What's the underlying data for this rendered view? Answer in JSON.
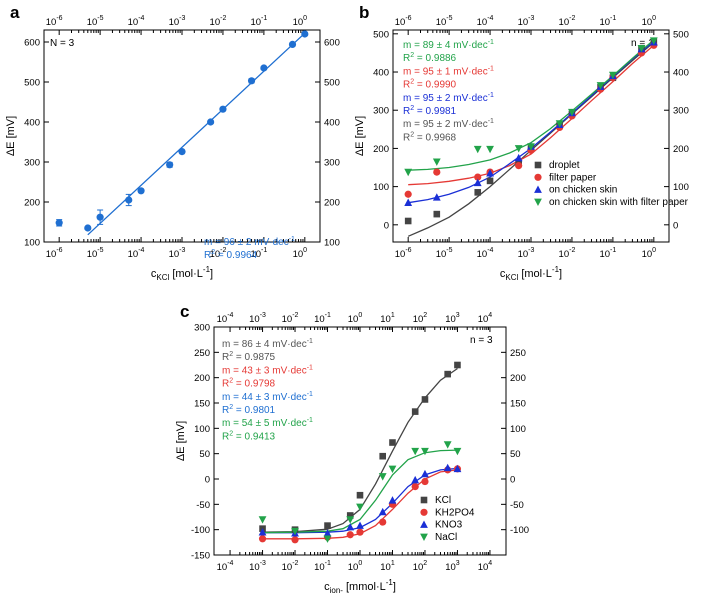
{
  "chart_data": [
    {
      "id": "a",
      "type": "scatter",
      "panel_label": "a",
      "xscale": "log",
      "xlim": [
        1e-06,
        1
      ],
      "ylim": [
        100,
        630
      ],
      "yticks": [
        100,
        200,
        300,
        400,
        500,
        600
      ],
      "ytick_labels": [
        "100",
        "200",
        "300",
        "400",
        "500",
        "600"
      ],
      "yticks_right": [
        100,
        200,
        300,
        400,
        500,
        600
      ],
      "ytick_labels_right": [
        "100",
        "200",
        "300",
        "400",
        "500",
        "600"
      ],
      "xtick_labels": [
        "10",
        "10",
        "10",
        "10",
        "10",
        "10",
        "10"
      ],
      "xtick_exps": [
        "-6",
        "-5",
        "-4",
        "-3",
        "-2",
        "-1",
        "0"
      ],
      "xlabel": "c",
      "xlabel_sub": "KCl",
      "xlabel_tail": " [mol·L",
      "xlabel_sup": "-1",
      "xlabel_end": "]",
      "ylabel": "ΔE [mV]",
      "note": "N = 3",
      "annotations": [
        {
          "text": "m = 96 ± 2 mV·dec",
          "sup": "-1",
          "color": "#1f6fd1"
        },
        {
          "text": "R",
          "sup": "2",
          "tail": " = 0.9964",
          "color": "#1f6fd1"
        }
      ],
      "series": [
        {
          "color": "#1f6fd1",
          "marker": "circle",
          "x": [
            1e-06,
            5e-06,
            1e-05,
            5e-05,
            0.0001,
            0.0005,
            0.001,
            0.005,
            0.01,
            0.05,
            0.1,
            0.5,
            1
          ],
          "y": [
            148,
            135,
            162,
            205,
            228,
            293,
            326,
            400,
            432,
            503,
            535,
            594,
            620
          ],
          "err": [
            8,
            3,
            18,
            14,
            4,
            6,
            4,
            3,
            3,
            5,
            4,
            4,
            3
          ]
        }
      ],
      "fit_lines": [
        {
          "color": "#1f6fd1",
          "x": [
            5e-06,
            1
          ],
          "y": [
            118,
            622
          ]
        }
      ]
    },
    {
      "id": "b",
      "type": "scatter",
      "panel_label": "b",
      "xscale": "log",
      "xlim": [
        1e-06,
        1
      ],
      "ylim": [
        -45,
        510
      ],
      "yticks": [
        0,
        100,
        200,
        300,
        400,
        500
      ],
      "ytick_labels": [
        "0",
        "100",
        "200",
        "300",
        "400",
        "500"
      ],
      "yticks_right": [
        0,
        100,
        200,
        300,
        400,
        500
      ],
      "ytick_labels_right": [
        "0",
        "100",
        "200",
        "300",
        "400",
        "500"
      ],
      "xtick_labels": [
        "10",
        "10",
        "10",
        "10",
        "10",
        "10",
        "10"
      ],
      "xtick_exps": [
        "-6",
        "-5",
        "-4",
        "-3",
        "-2",
        "-1",
        "0"
      ],
      "xlabel": "c",
      "xlabel_sub": "KCl",
      "xlabel_tail": " [mol·L",
      "xlabel_sup": "-1",
      "xlabel_end": "]",
      "ylabel": "ΔE [mV]",
      "note": "n = 1",
      "annotations": [
        {
          "text": "m = 89 ± 4 mV·dec",
          "sup": "-1",
          "color": "#22a34a"
        },
        {
          "text": "R",
          "sup": "2",
          "tail": " = 0.9886",
          "color": "#22a34a"
        },
        {
          "text": "m = 95 ± 1 mV·dec",
          "sup": "-1",
          "color": "#e53935"
        },
        {
          "text": "R",
          "sup": "2",
          "tail": " = 0.9990",
          "color": "#e53935"
        },
        {
          "text": "m = 95 ± 2 mV·dec",
          "sup": "-1",
          "color": "#1a2fd6"
        },
        {
          "text": "R",
          "sup": "2",
          "tail": " = 0.9981",
          "color": "#1a2fd6"
        },
        {
          "text": "m = 95 ± 2 mV·dec",
          "sup": "-1",
          "color": "#555555"
        },
        {
          "text": "R",
          "sup": "2",
          "tail": " = 0.9968",
          "color": "#555555"
        }
      ],
      "legend": [
        "droplet",
        "filter paper",
        "on chicken skin",
        "on chicken skin with filter paper"
      ],
      "series": [
        {
          "name": "droplet",
          "color": "#444444",
          "marker": "square",
          "x": [
            1e-06,
            5e-06,
            5e-05,
            0.0001,
            0.0005,
            0.001,
            0.005,
            0.01,
            0.05,
            0.1,
            0.5,
            1
          ],
          "y": [
            10,
            28,
            85,
            115,
            160,
            200,
            260,
            290,
            360,
            385,
            460,
            480
          ]
        },
        {
          "name": "filter paper",
          "color": "#e53935",
          "marker": "circle",
          "x": [
            1e-06,
            5e-06,
            5e-05,
            0.0001,
            0.0005,
            0.001,
            0.005,
            0.01,
            0.05,
            0.1,
            0.5,
            1
          ],
          "y": [
            80,
            138,
            125,
            138,
            155,
            195,
            255,
            285,
            355,
            385,
            450,
            470
          ]
        },
        {
          "name": "on chicken skin",
          "color": "#1a2fd6",
          "marker": "triangle-up",
          "x": [
            1e-06,
            5e-06,
            5e-05,
            0.0001,
            0.0005,
            0.001,
            0.005,
            0.01,
            0.05,
            0.1,
            0.5,
            1
          ],
          "y": [
            58,
            72,
            110,
            135,
            175,
            205,
            262,
            293,
            362,
            390,
            460,
            478
          ]
        },
        {
          "name": "on chicken skin with filter paper",
          "color": "#22a34a",
          "marker": "triangle-down",
          "x": [
            1e-06,
            5e-06,
            5e-05,
            0.0001,
            0.0005,
            0.001,
            0.005,
            0.01,
            0.05,
            0.1,
            0.5,
            1
          ],
          "y": [
            138,
            165,
            198,
            198,
            200,
            205,
            265,
            295,
            365,
            392,
            462,
            482
          ]
        }
      ],
      "fit_lines": [
        {
          "color": "#444444",
          "x": [
            1e-06,
            3e-06,
            1e-05,
            3e-05,
            0.0001,
            0.0003,
            0.001,
            0.003,
            0.01,
            0.03,
            0.1,
            0.3,
            1
          ],
          "y": [
            -30,
            -8,
            20,
            55,
            100,
            145,
            195,
            240,
            290,
            335,
            385,
            430,
            478
          ]
        },
        {
          "color": "#e53935",
          "x": [
            1e-06,
            3e-06,
            1e-05,
            3e-05,
            0.0001,
            0.0003,
            0.001,
            0.003,
            0.01,
            0.03,
            0.1,
            0.3,
            1
          ],
          "y": [
            105,
            108,
            114,
            122,
            135,
            155,
            185,
            228,
            278,
            325,
            375,
            422,
            470
          ]
        },
        {
          "color": "#1a2fd6",
          "x": [
            1e-06,
            3e-06,
            1e-05,
            3e-05,
            0.0001,
            0.0003,
            0.001,
            0.003,
            0.01,
            0.03,
            0.1,
            0.3,
            1
          ],
          "y": [
            58,
            66,
            80,
            98,
            125,
            160,
            200,
            243,
            292,
            338,
            388,
            434,
            480
          ]
        },
        {
          "color": "#22a34a",
          "x": [
            1e-06,
            3e-06,
            1e-05,
            3e-05,
            0.0001,
            0.0003,
            0.001,
            0.003,
            0.01,
            0.03,
            0.1,
            0.3,
            1
          ],
          "y": [
            143,
            145,
            150,
            158,
            170,
            188,
            215,
            252,
            298,
            342,
            390,
            436,
            484
          ]
        }
      ]
    },
    {
      "id": "c",
      "type": "scatter",
      "panel_label": "c",
      "xscale": "log",
      "xlim": [
        0.0001,
        10000.0
      ],
      "ylim": [
        -150,
        300
      ],
      "yticks": [
        -150,
        -100,
        -50,
        0,
        50,
        100,
        150,
        200,
        250,
        300
      ],
      "ytick_labels": [
        "-150",
        "-100",
        "-50",
        "0",
        "50",
        "100",
        "150",
        "200",
        "250",
        "300"
      ],
      "yticks_right": [
        -100,
        -50,
        0,
        50,
        100,
        150,
        200,
        250
      ],
      "ytick_labels_right": [
        "-100",
        "-50",
        "0",
        "50",
        "100",
        "150",
        "200",
        "250"
      ],
      "xtick_labels": [
        "10",
        "10",
        "10",
        "10",
        "10",
        "10",
        "10",
        "10",
        "10"
      ],
      "xtick_exps": [
        "-4",
        "-3",
        "-2",
        "-1",
        "0",
        "1",
        "2",
        "3",
        "4"
      ],
      "xlabel": "c",
      "xlabel_sub": "ion-",
      "xlabel_tail": " [mmol·L",
      "xlabel_sup": "-1",
      "xlabel_end": "]",
      "ylabel": "ΔE [mV]",
      "note": "n = 3",
      "annotations": [
        {
          "text": "m = 86 ± 4 mV·dec",
          "sup": "-1",
          "color": "#555555"
        },
        {
          "text": "R",
          "sup": "2",
          "tail": " = 0.9875",
          "color": "#555555"
        },
        {
          "text": "m = 43 ± 3 mV·dec",
          "sup": "-1",
          "color": "#e53935"
        },
        {
          "text": "R",
          "sup": "2",
          "tail": " = 0.9798",
          "color": "#e53935"
        },
        {
          "text": "m = 44 ± 3 mV·dec",
          "sup": "-1",
          "color": "#1f6fd1"
        },
        {
          "text": "R",
          "sup": "2",
          "tail": " = 0.9801",
          "color": "#1f6fd1"
        },
        {
          "text": "m = 54 ± 5 mV·dec",
          "sup": "-1",
          "color": "#22a34a"
        },
        {
          "text": "R",
          "sup": "2",
          "tail": " = 0.9413",
          "color": "#22a34a"
        }
      ],
      "legend": [
        "KCl",
        "KH2PO4",
        "KNO3",
        "NaCl"
      ],
      "series": [
        {
          "name": "KCl",
          "color": "#444444",
          "marker": "square",
          "x": [
            0.001,
            0.01,
            0.1,
            0.5,
            1,
            5,
            10,
            50,
            100,
            500,
            1000
          ],
          "y": [
            -98,
            -100,
            -92,
            -72,
            -32,
            45,
            72,
            133,
            157,
            207,
            225
          ]
        },
        {
          "name": "KH2PO4",
          "color": "#e53935",
          "marker": "circle",
          "x": [
            0.001,
            0.01,
            0.1,
            0.5,
            1,
            5,
            10,
            50,
            100,
            500,
            1000
          ],
          "y": [
            -118,
            -120,
            -115,
            -110,
            -105,
            -85,
            -50,
            -15,
            -5,
            18,
            20
          ]
        },
        {
          "name": "KNO3",
          "color": "#1a2fd6",
          "marker": "triangle-up",
          "x": [
            0.001,
            0.01,
            0.1,
            0.5,
            1,
            5,
            10,
            50,
            100,
            500,
            1000
          ],
          "y": [
            -105,
            -107,
            -107,
            -95,
            -92,
            -65,
            -42,
            -2,
            10,
            22,
            20
          ]
        },
        {
          "name": "NaCl",
          "color": "#22a34a",
          "marker": "triangle-down",
          "x": [
            0.001,
            0.01,
            0.1,
            0.5,
            1,
            5,
            10,
            50,
            100,
            500,
            1000
          ],
          "y": [
            -80,
            -103,
            -118,
            -80,
            -55,
            5,
            20,
            55,
            55,
            68,
            55
          ]
        }
      ],
      "fit_lines": [
        {
          "color": "#444444",
          "x": [
            0.001,
            0.01,
            0.1,
            0.3,
            1,
            3,
            10,
            30,
            100,
            300,
            1000
          ],
          "y": [
            -105,
            -104,
            -99,
            -88,
            -60,
            -10,
            55,
            112,
            160,
            195,
            218
          ]
        },
        {
          "color": "#e53935",
          "x": [
            0.001,
            0.01,
            0.1,
            0.3,
            1,
            3,
            10,
            30,
            100,
            300,
            1000
          ],
          "y": [
            -118,
            -118,
            -117,
            -115,
            -108,
            -92,
            -60,
            -28,
            0,
            14,
            18
          ]
        },
        {
          "color": "#1a2fd6",
          "x": [
            0.001,
            0.01,
            0.1,
            0.3,
            1,
            3,
            10,
            30,
            100,
            300,
            1000
          ],
          "y": [
            -106,
            -106,
            -105,
            -103,
            -96,
            -80,
            -48,
            -15,
            8,
            18,
            21
          ]
        },
        {
          "color": "#22a34a",
          "x": [
            0.001,
            0.01,
            0.1,
            0.3,
            1,
            3,
            10,
            30,
            100,
            300,
            1000
          ],
          "y": [
            -106,
            -105,
            -103,
            -98,
            -80,
            -42,
            8,
            38,
            52,
            56,
            57
          ]
        }
      ]
    }
  ]
}
